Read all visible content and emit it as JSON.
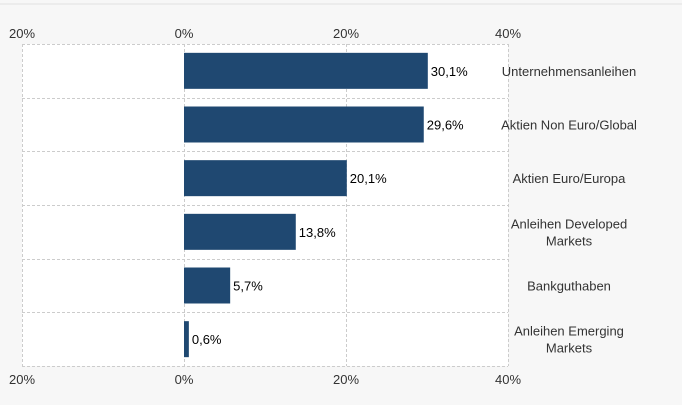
{
  "chart_data": {
    "type": "bar",
    "orientation": "horizontal",
    "categories": [
      [
        "Unternehmensanleihen"
      ],
      [
        "Aktien Non Euro/Global"
      ],
      [
        "Aktien Euro/Europa"
      ],
      [
        "Anleihen Developed",
        "Markets"
      ],
      [
        "Bankguthaben"
      ],
      [
        "Anleihen Emerging",
        "Markets"
      ]
    ],
    "values": [
      30.1,
      29.6,
      20.1,
      13.8,
      5.7,
      0.6
    ],
    "data_labels": [
      "30,1%",
      "29,6%",
      "20,1%",
      "13,8%",
      "5,7%",
      "0,6%"
    ],
    "xlim": [
      -20,
      40
    ],
    "x_ticks": [
      -20,
      0,
      20,
      40
    ],
    "x_tick_labels": [
      "20%",
      "0%",
      "20%",
      "40%"
    ],
    "x_axis_positions": [
      "top",
      "bottom"
    ],
    "category_labels_side": "right",
    "grid": true,
    "legend": "none",
    "colors": {
      "bar": "#1f4871",
      "grid": "#cccccc",
      "plot_bg": "#ffffff",
      "page_bg": "#f7f7f7"
    }
  }
}
